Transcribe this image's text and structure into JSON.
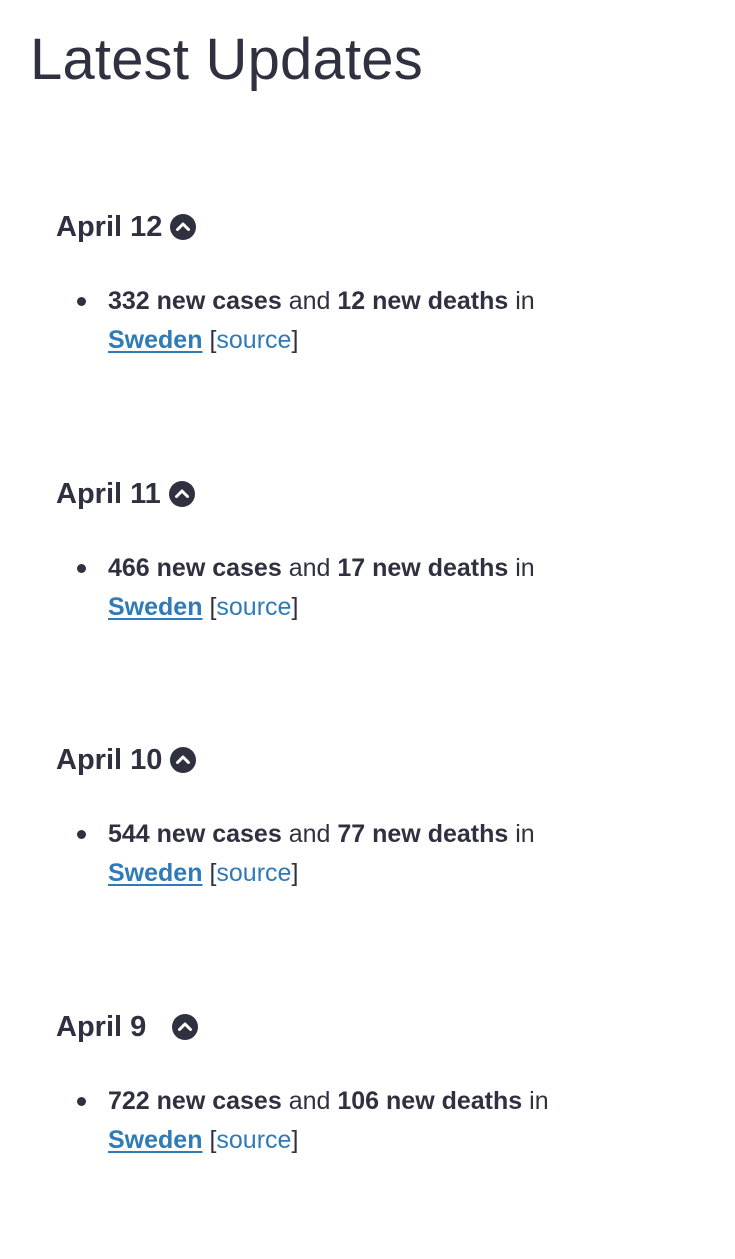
{
  "page": {
    "title": "Latest Updates"
  },
  "colors": {
    "text": "#2f3140",
    "link": "#2f7ab8",
    "background": "#ffffff"
  },
  "updates": [
    {
      "date": "April 12",
      "icon": "chevron-up-circle-icon",
      "cases": "332 new cases",
      "and": "and",
      "deaths": "12 new deaths",
      "in": "in",
      "country": "Sweden",
      "bracket_open": "[",
      "source": "source",
      "bracket_close": "]"
    },
    {
      "date": "April 11",
      "icon": "chevron-up-circle-icon",
      "cases": "466 new cases",
      "and": "and",
      "deaths": "17 new deaths",
      "in": "in",
      "country": "Sweden",
      "bracket_open": "[",
      "source": "source",
      "bracket_close": "]"
    },
    {
      "date": "April 10",
      "icon": "chevron-up-circle-icon",
      "cases": "544 new cases",
      "and": "and",
      "deaths": "77 new deaths",
      "in": "in",
      "country": "Sweden",
      "bracket_open": "[",
      "source": "source",
      "bracket_close": "]"
    },
    {
      "date": "April 9",
      "icon": "chevron-up-circle-icon",
      "cases": "722 new cases",
      "and": "and",
      "deaths": "106 new deaths",
      "in": "in",
      "country": "Sweden",
      "bracket_open": "[",
      "source": "source",
      "bracket_close": "]"
    }
  ]
}
